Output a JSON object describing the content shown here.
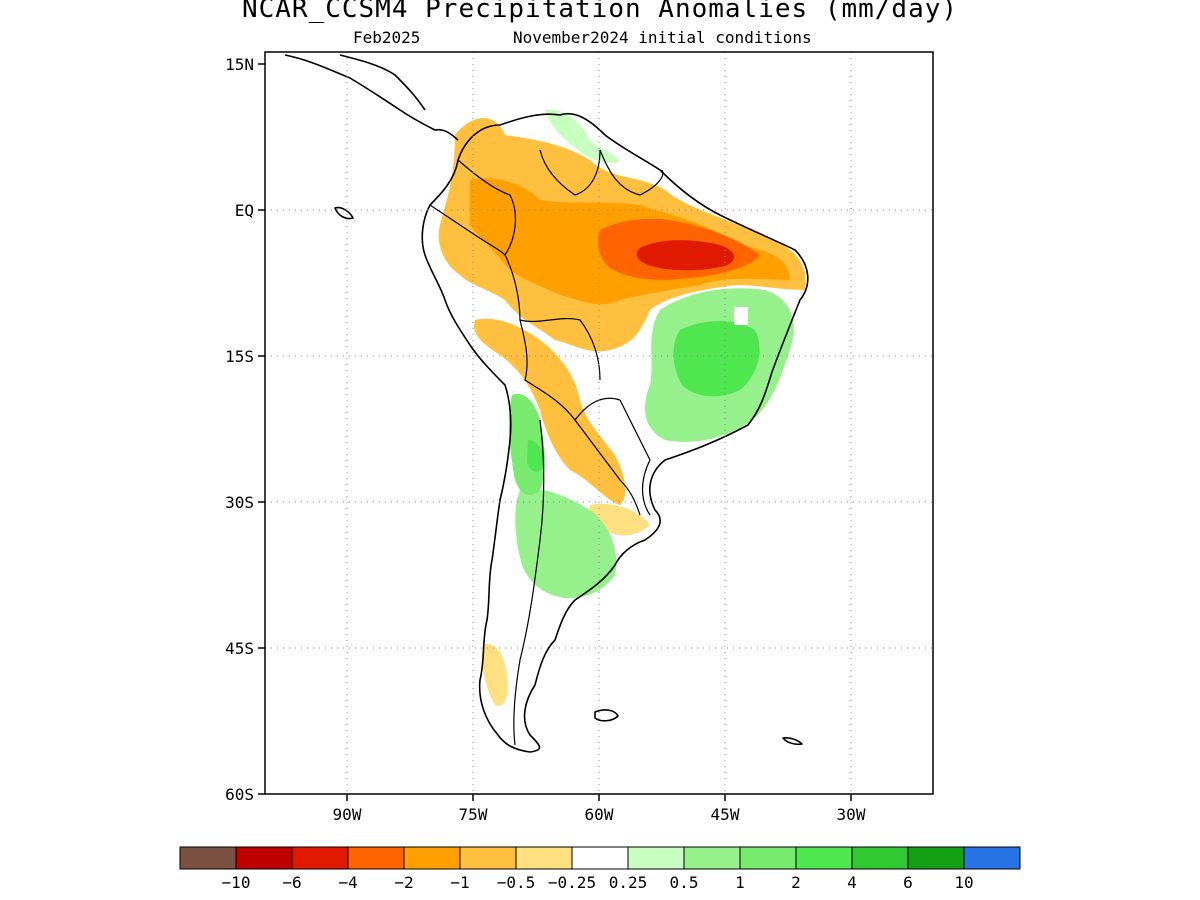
{
  "title": "NCAR_CCSM4 Precipitation Anomalies (mm/day)",
  "subtitle_left": "Feb2025",
  "subtitle_right": "November2024 initial conditions",
  "map": {
    "lon_ticks": [
      "90W",
      "75W",
      "60W",
      "45W",
      "30W"
    ],
    "lat_ticks": [
      "15N",
      "EQ",
      "15S",
      "30S",
      "45S",
      "60S"
    ],
    "lon_range": [
      -100,
      -20
    ],
    "lat_range": [
      -60,
      15
    ],
    "grid": "dotted"
  },
  "colorbar": {
    "labels": [
      "−10",
      "−6",
      "−4",
      "−2",
      "−1",
      "−0.5",
      "−0.25",
      "0.25",
      "0.5",
      "1",
      "2",
      "4",
      "6",
      "10"
    ],
    "colors": [
      "#7a5040",
      "#c00000",
      "#e01a00",
      "#ff6400",
      "#ffa000",
      "#ffc040",
      "#ffe080",
      "#ffffff",
      "#c8ffc0",
      "#96f08c",
      "#78eb6e",
      "#50e650",
      "#32c832",
      "#14a014",
      "#2873e6"
    ]
  }
}
